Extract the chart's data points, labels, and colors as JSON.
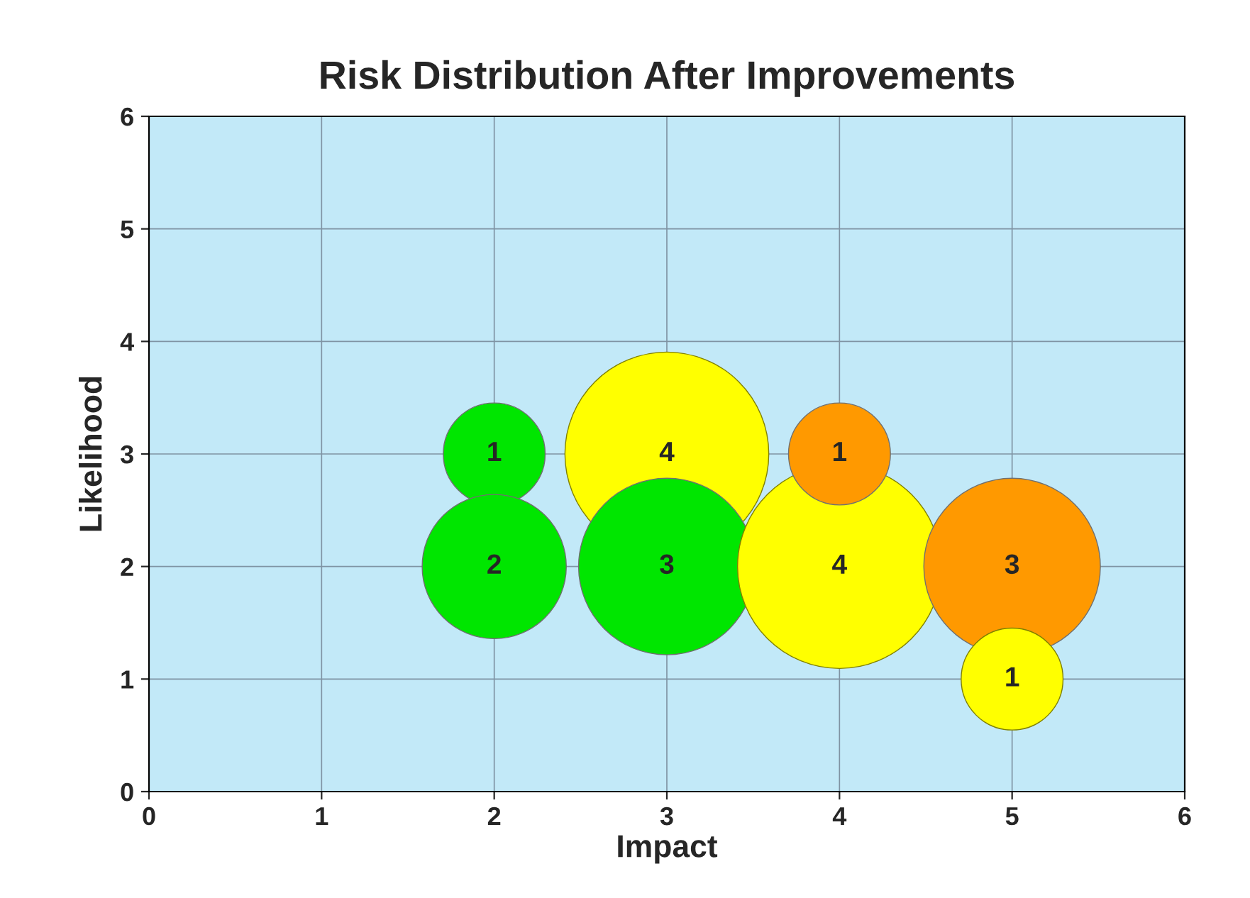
{
  "chart_data": {
    "type": "bubble",
    "title": "Risk Distribution After Improvements",
    "xlabel": "Impact",
    "ylabel": "Likelihood",
    "x": [
      2,
      2,
      3,
      3,
      4,
      4,
      5,
      5
    ],
    "values": [
      3,
      2,
      3,
      2,
      2,
      3,
      2,
      1
    ],
    "sizes": [
      0.25,
      0.5,
      1,
      0.75,
      1,
      0.25,
      0.75,
      0.25
    ],
    "colors": [
      "#00e600",
      "#00e600",
      "#ffff00",
      "#00e600",
      "#ffff00",
      "#ff9900",
      "#ff9900",
      "#ffff00"
    ],
    "annotations": [
      {
        "text": "1",
        "x": 2,
        "y": 3
      },
      {
        "text": "2",
        "x": 2,
        "y": 2
      },
      {
        "text": "4",
        "x": 3,
        "y": 3
      },
      {
        "text": "3",
        "x": 3,
        "y": 2
      },
      {
        "text": "4",
        "x": 4,
        "y": 2
      },
      {
        "text": "1",
        "x": 4,
        "y": 3
      },
      {
        "text": "3",
        "x": 5,
        "y": 2
      },
      {
        "text": "1",
        "x": 5,
        "y": 1
      }
    ],
    "xlim": [
      0,
      6
    ],
    "ylim": [
      0,
      6
    ],
    "xticks": [
      0,
      1,
      2,
      3,
      4,
      5,
      6
    ],
    "yticks": [
      0,
      1,
      2,
      3,
      4,
      5,
      6
    ],
    "grid": true,
    "legend": false
  }
}
